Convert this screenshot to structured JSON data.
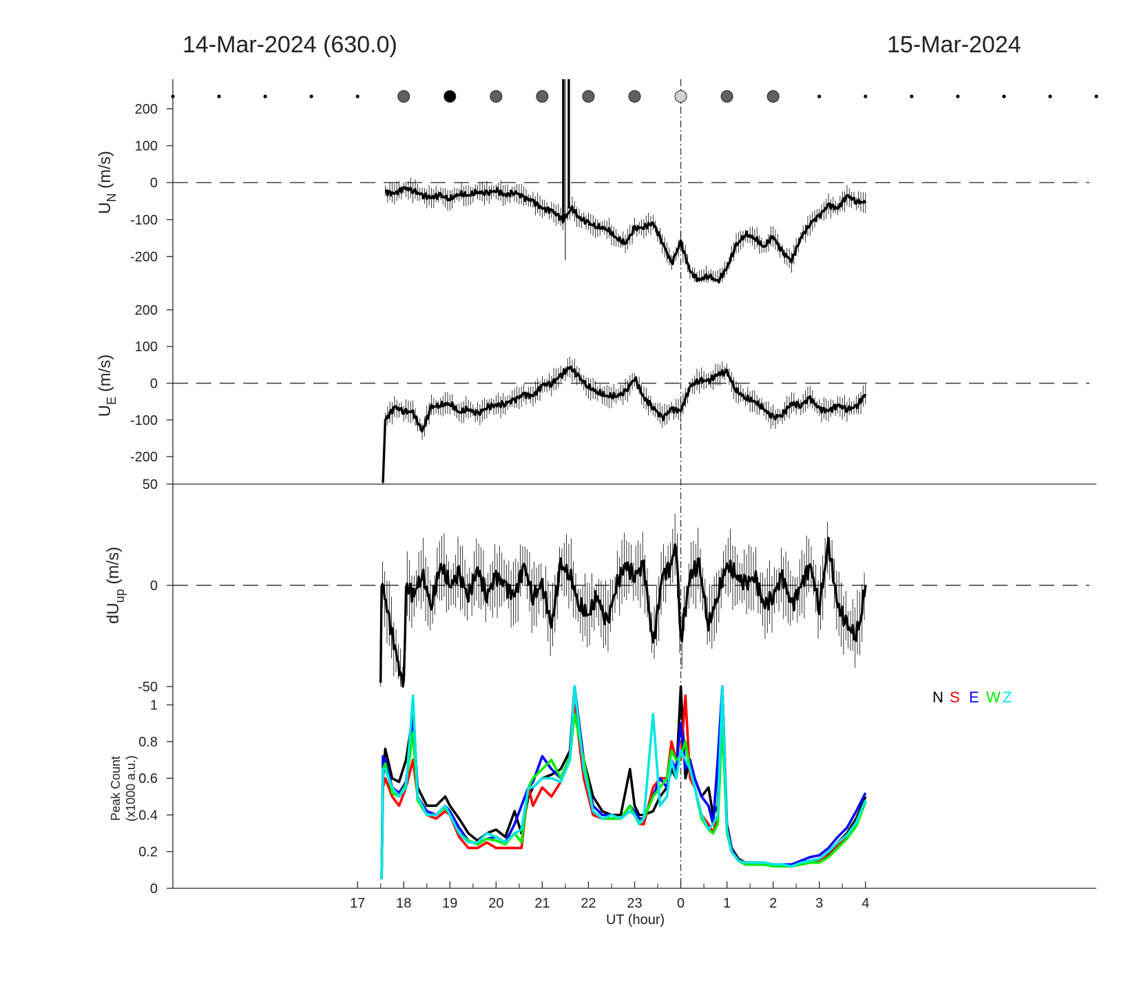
{
  "header": {
    "left_title": "14-Mar-2024 (630.0)",
    "right_title": "15-Mar-2024"
  },
  "chart_data": [
    {
      "type": "line",
      "panel": "meridional wind",
      "ylabel_main": "U",
      "ylabel_sub": "N",
      "ylabel_unit": " (m/s)",
      "ylim": [
        -270,
        280
      ],
      "yticks": [
        "200",
        "100",
        "0",
        "-100",
        "-200"
      ],
      "ytick_values": [
        200,
        100,
        0,
        -100,
        -200
      ],
      "zero_line": "dashed",
      "error_bars": true,
      "spike": {
        "x": 21.5,
        "range": [
          -210,
          280
        ]
      },
      "x": [
        17.6,
        17.8,
        18.0,
        18.2,
        18.4,
        18.6,
        18.8,
        19.0,
        19.2,
        19.4,
        19.6,
        19.8,
        20.0,
        20.2,
        20.4,
        20.6,
        20.8,
        21.0,
        21.2,
        21.45,
        21.65,
        21.8,
        22.0,
        22.2,
        22.4,
        22.6,
        22.8,
        23.0,
        23.2,
        23.4,
        23.6,
        23.8,
        0.0,
        0.2,
        0.4,
        0.6,
        0.8,
        1.0,
        1.2,
        1.4,
        1.6,
        1.8,
        2.0,
        2.2,
        2.4,
        2.6,
        2.8,
        3.0,
        3.2,
        3.4,
        3.6,
        3.8,
        4.0
      ],
      "values": [
        -25,
        -30,
        -15,
        -20,
        -35,
        -40,
        -35,
        -45,
        -30,
        -35,
        -25,
        -30,
        -20,
        -35,
        -25,
        -40,
        -50,
        -70,
        -75,
        -100,
        -70,
        -95,
        -110,
        -120,
        -125,
        -150,
        -165,
        -125,
        -120,
        -110,
        -160,
        -220,
        -160,
        -240,
        -265,
        -250,
        -270,
        -230,
        -170,
        -140,
        -150,
        -175,
        -145,
        -190,
        -210,
        -150,
        -110,
        -90,
        -60,
        -70,
        -35,
        -50,
        -55
      ]
    },
    {
      "type": "line",
      "panel": "zonal wind",
      "ylabel_main": "U",
      "ylabel_sub": "E",
      "ylabel_unit": " (m/s)",
      "ylim": [
        -275,
        275
      ],
      "yticks": [
        "200",
        "100",
        "0",
        "-100",
        "-200"
      ],
      "ytick_values": [
        200,
        100,
        0,
        -100,
        -200
      ],
      "zero_line": "dashed",
      "error_bars": true,
      "x": [
        17.55,
        17.6,
        17.8,
        18.0,
        18.2,
        18.4,
        18.6,
        18.8,
        19.0,
        19.2,
        19.4,
        19.6,
        19.8,
        20.0,
        20.2,
        20.4,
        20.6,
        20.8,
        21.0,
        21.2,
        21.4,
        21.6,
        21.8,
        22.0,
        22.2,
        22.4,
        22.6,
        22.8,
        23.0,
        23.2,
        23.4,
        23.6,
        23.8,
        0.0,
        0.2,
        0.4,
        0.6,
        0.8,
        1.0,
        1.2,
        1.4,
        1.6,
        1.8,
        2.0,
        2.2,
        2.4,
        2.6,
        2.8,
        3.0,
        3.2,
        3.4,
        3.6,
        3.8,
        4.0
      ],
      "values": [
        -275,
        -100,
        -65,
        -75,
        -80,
        -130,
        -65,
        -60,
        -55,
        -80,
        -70,
        -85,
        -65,
        -60,
        -55,
        -45,
        -30,
        -35,
        -5,
        0,
        20,
        45,
        15,
        -10,
        -25,
        -35,
        -35,
        -25,
        15,
        -40,
        -65,
        -95,
        -70,
        -75,
        -10,
        10,
        5,
        25,
        30,
        -20,
        -40,
        -50,
        -70,
        -95,
        -85,
        -55,
        -60,
        -40,
        -70,
        -75,
        -60,
        -70,
        -65,
        -30
      ]
    },
    {
      "type": "line",
      "panel": "vertical wind",
      "ylabel_main": "dU",
      "ylabel_sub": "up",
      "ylabel_unit": " (m/s)",
      "ylim": [
        -50,
        50
      ],
      "yticks": [
        "50",
        "0",
        "-50"
      ],
      "ytick_values": [
        50,
        0,
        -50
      ],
      "zero_line": "dashed",
      "error_bars": true,
      "x": [
        17.5,
        17.52,
        17.54,
        17.98,
        18.0,
        18.05,
        18.2,
        18.4,
        18.6,
        18.8,
        19.0,
        19.2,
        19.4,
        19.6,
        19.8,
        20.0,
        20.2,
        20.4,
        20.6,
        20.8,
        21.0,
        21.2,
        21.4,
        21.6,
        21.8,
        22.0,
        22.2,
        22.4,
        22.6,
        22.8,
        23.0,
        23.2,
        23.4,
        23.6,
        23.8,
        23.9,
        0.0,
        0.2,
        0.4,
        0.6,
        0.8,
        1.0,
        1.2,
        1.4,
        1.6,
        1.8,
        2.0,
        2.2,
        2.4,
        2.6,
        2.8,
        3.0,
        3.2,
        3.4,
        3.6,
        3.8,
        3.9,
        4.0
      ],
      "values": [
        -50,
        0,
        0,
        -50,
        -50,
        0,
        -5,
        5,
        -10,
        10,
        0,
        5,
        -5,
        8,
        -5,
        5,
        0,
        -5,
        10,
        -5,
        0,
        -20,
        10,
        5,
        -10,
        -15,
        -5,
        -20,
        0,
        10,
        5,
        10,
        -30,
        5,
        10,
        22,
        -28,
        5,
        10,
        -20,
        -5,
        10,
        5,
        0,
        5,
        -10,
        -5,
        5,
        -10,
        0,
        10,
        -10,
        20,
        -10,
        -20,
        -25,
        -15,
        0
      ]
    },
    {
      "type": "line",
      "panel": "peak count",
      "ylabel_line1": "Peak Count",
      "ylabel_line2": "(x1000 a.u.)",
      "ylim": [
        0,
        1.1
      ],
      "yticks": [
        "1",
        "0.8",
        "0.6",
        "0.4",
        "0.2",
        "0"
      ],
      "ytick_values": [
        1,
        0.8,
        0.6,
        0.4,
        0.2,
        0
      ],
      "legend": [
        "N",
        "S",
        "E",
        "W",
        "Z"
      ],
      "legend_colors": [
        "#000000",
        "#ff0000",
        "#0000ff",
        "#00ee00",
        "#00e5e5"
      ],
      "x": [
        17.52,
        17.55,
        17.6,
        17.75,
        17.9,
        18.05,
        18.2,
        18.3,
        18.5,
        18.7,
        18.9,
        19.0,
        19.2,
        19.4,
        19.6,
        19.8,
        20.0,
        20.2,
        20.4,
        20.55,
        20.7,
        20.8,
        21.0,
        21.2,
        21.4,
        21.6,
        21.7,
        21.9,
        22.1,
        22.3,
        22.5,
        22.7,
        22.9,
        23.0,
        23.1,
        23.2,
        23.4,
        23.55,
        23.7,
        23.8,
        23.9,
        0.0,
        0.1,
        0.2,
        0.3,
        0.45,
        0.6,
        0.7,
        0.8,
        0.9,
        1.0,
        1.1,
        1.25,
        1.4,
        1.6,
        1.8,
        2.0,
        2.2,
        2.4,
        2.6,
        2.8,
        3.0,
        3.2,
        3.4,
        3.6,
        3.8,
        4.0
      ],
      "series": [
        {
          "name": "N",
          "values": [
            0.05,
            0.6,
            0.76,
            0.6,
            0.58,
            0.7,
            0.95,
            0.55,
            0.45,
            0.45,
            0.5,
            0.45,
            0.38,
            0.3,
            0.26,
            0.3,
            0.32,
            0.28,
            0.42,
            0.3,
            0.5,
            0.55,
            0.6,
            0.62,
            0.65,
            0.75,
            1.1,
            0.7,
            0.5,
            0.42,
            0.4,
            0.4,
            0.65,
            0.45,
            0.4,
            0.4,
            0.42,
            0.5,
            0.55,
            0.65,
            0.6,
            1.1,
            0.6,
            0.7,
            0.6,
            0.5,
            0.55,
            0.4,
            0.45,
            1.1,
            0.35,
            0.22,
            0.16,
            0.14,
            0.14,
            0.14,
            0.13,
            0.13,
            0.13,
            0.14,
            0.15,
            0.16,
            0.19,
            0.25,
            0.3,
            0.38,
            0.5
          ]
        },
        {
          "name": "S",
          "values": [
            0.05,
            0.55,
            0.6,
            0.5,
            0.45,
            0.55,
            0.7,
            0.5,
            0.4,
            0.38,
            0.42,
            0.4,
            0.28,
            0.22,
            0.22,
            0.25,
            0.22,
            0.22,
            0.22,
            0.22,
            0.55,
            0.45,
            0.55,
            0.5,
            0.58,
            0.7,
            1.0,
            0.6,
            0.4,
            0.38,
            0.4,
            0.38,
            0.45,
            0.4,
            0.35,
            0.35,
            0.55,
            0.6,
            0.6,
            0.8,
            0.7,
            0.7,
            1.05,
            0.6,
            0.55,
            0.4,
            0.35,
            0.3,
            0.4,
            1.0,
            0.32,
            0.2,
            0.15,
            0.14,
            0.13,
            0.13,
            0.13,
            0.12,
            0.12,
            0.13,
            0.14,
            0.15,
            0.18,
            0.23,
            0.28,
            0.35,
            0.48
          ]
        },
        {
          "name": "E",
          "values": [
            0.05,
            0.72,
            0.7,
            0.55,
            0.52,
            0.58,
            0.9,
            0.5,
            0.42,
            0.4,
            0.45,
            0.42,
            0.33,
            0.26,
            0.24,
            0.27,
            0.28,
            0.25,
            0.35,
            0.45,
            0.55,
            0.58,
            0.72,
            0.65,
            0.6,
            0.72,
            1.1,
            0.68,
            0.45,
            0.4,
            0.4,
            0.38,
            0.45,
            0.42,
            0.38,
            0.38,
            0.5,
            0.6,
            0.55,
            0.7,
            0.65,
            0.9,
            0.65,
            0.7,
            0.6,
            0.5,
            0.45,
            0.35,
            0.7,
            1.1,
            0.33,
            0.21,
            0.15,
            0.14,
            0.14,
            0.13,
            0.13,
            0.13,
            0.13,
            0.15,
            0.17,
            0.18,
            0.22,
            0.28,
            0.33,
            0.42,
            0.52
          ]
        },
        {
          "name": "W",
          "values": [
            0.05,
            0.65,
            0.68,
            0.52,
            0.5,
            0.57,
            0.85,
            0.48,
            0.4,
            0.4,
            0.44,
            0.4,
            0.3,
            0.26,
            0.24,
            0.27,
            0.26,
            0.24,
            0.3,
            0.25,
            0.55,
            0.6,
            0.65,
            0.7,
            0.6,
            0.72,
            0.95,
            0.7,
            0.42,
            0.38,
            0.38,
            0.38,
            0.45,
            0.4,
            0.36,
            0.38,
            0.5,
            0.55,
            0.6,
            0.75,
            0.7,
            0.72,
            0.8,
            0.65,
            0.55,
            0.38,
            0.32,
            0.3,
            0.35,
            0.9,
            0.3,
            0.2,
            0.15,
            0.13,
            0.13,
            0.13,
            0.12,
            0.12,
            0.12,
            0.13,
            0.14,
            0.14,
            0.17,
            0.22,
            0.27,
            0.34,
            0.47
          ]
        },
        {
          "name": "Z",
          "values": [
            0.05,
            0.65,
            0.65,
            0.55,
            0.5,
            0.55,
            1.05,
            0.5,
            0.4,
            0.4,
            0.45,
            0.4,
            0.3,
            0.25,
            0.25,
            0.3,
            0.28,
            0.25,
            0.3,
            0.32,
            0.55,
            0.55,
            0.6,
            0.6,
            0.58,
            0.7,
            1.1,
            0.65,
            0.42,
            0.38,
            0.4,
            0.38,
            0.42,
            0.4,
            0.35,
            0.38,
            0.95,
            0.45,
            0.5,
            0.7,
            0.6,
            0.75,
            0.7,
            0.65,
            0.55,
            0.4,
            0.32,
            0.35,
            0.4,
            1.1,
            0.32,
            0.2,
            0.15,
            0.14,
            0.14,
            0.14,
            0.13,
            0.13,
            0.12,
            0.14,
            0.15,
            0.16,
            0.2,
            0.25,
            0.29,
            0.36,
            0.48
          ]
        }
      ]
    }
  ],
  "xaxis": {
    "label": "UT (hour)",
    "ticks": [
      "17",
      "18",
      "19",
      "20",
      "21",
      "22",
      "23",
      "0",
      "1",
      "2",
      "3",
      "4"
    ],
    "tick_hours": [
      17,
      18,
      19,
      20,
      21,
      22,
      23,
      24,
      25,
      26,
      27,
      28
    ],
    "minor_ticks": [
      17.5,
      18.5,
      19.5,
      20.5,
      21.5,
      22.5,
      23.5,
      24.5,
      25.5,
      26.5,
      27.5
    ],
    "range_hours": [
      13,
      33
    ],
    "midnight_line": "dash-dot"
  },
  "marker_row": {
    "hours": [
      13,
      14,
      15,
      16,
      17,
      18,
      19,
      20,
      21,
      22,
      23,
      24,
      25,
      26,
      27,
      28,
      29,
      30,
      31,
      32,
      33
    ],
    "fills": [
      "dot",
      "dot",
      "dot",
      "dot",
      "dot",
      "#606060",
      "#000000",
      "#606060",
      "#606060",
      "#606060",
      "#606060",
      "#d2d2d2",
      "#606060",
      "#606060",
      "dot",
      "dot",
      "dot",
      "dot",
      "dot",
      "dot",
      "dot"
    ]
  }
}
